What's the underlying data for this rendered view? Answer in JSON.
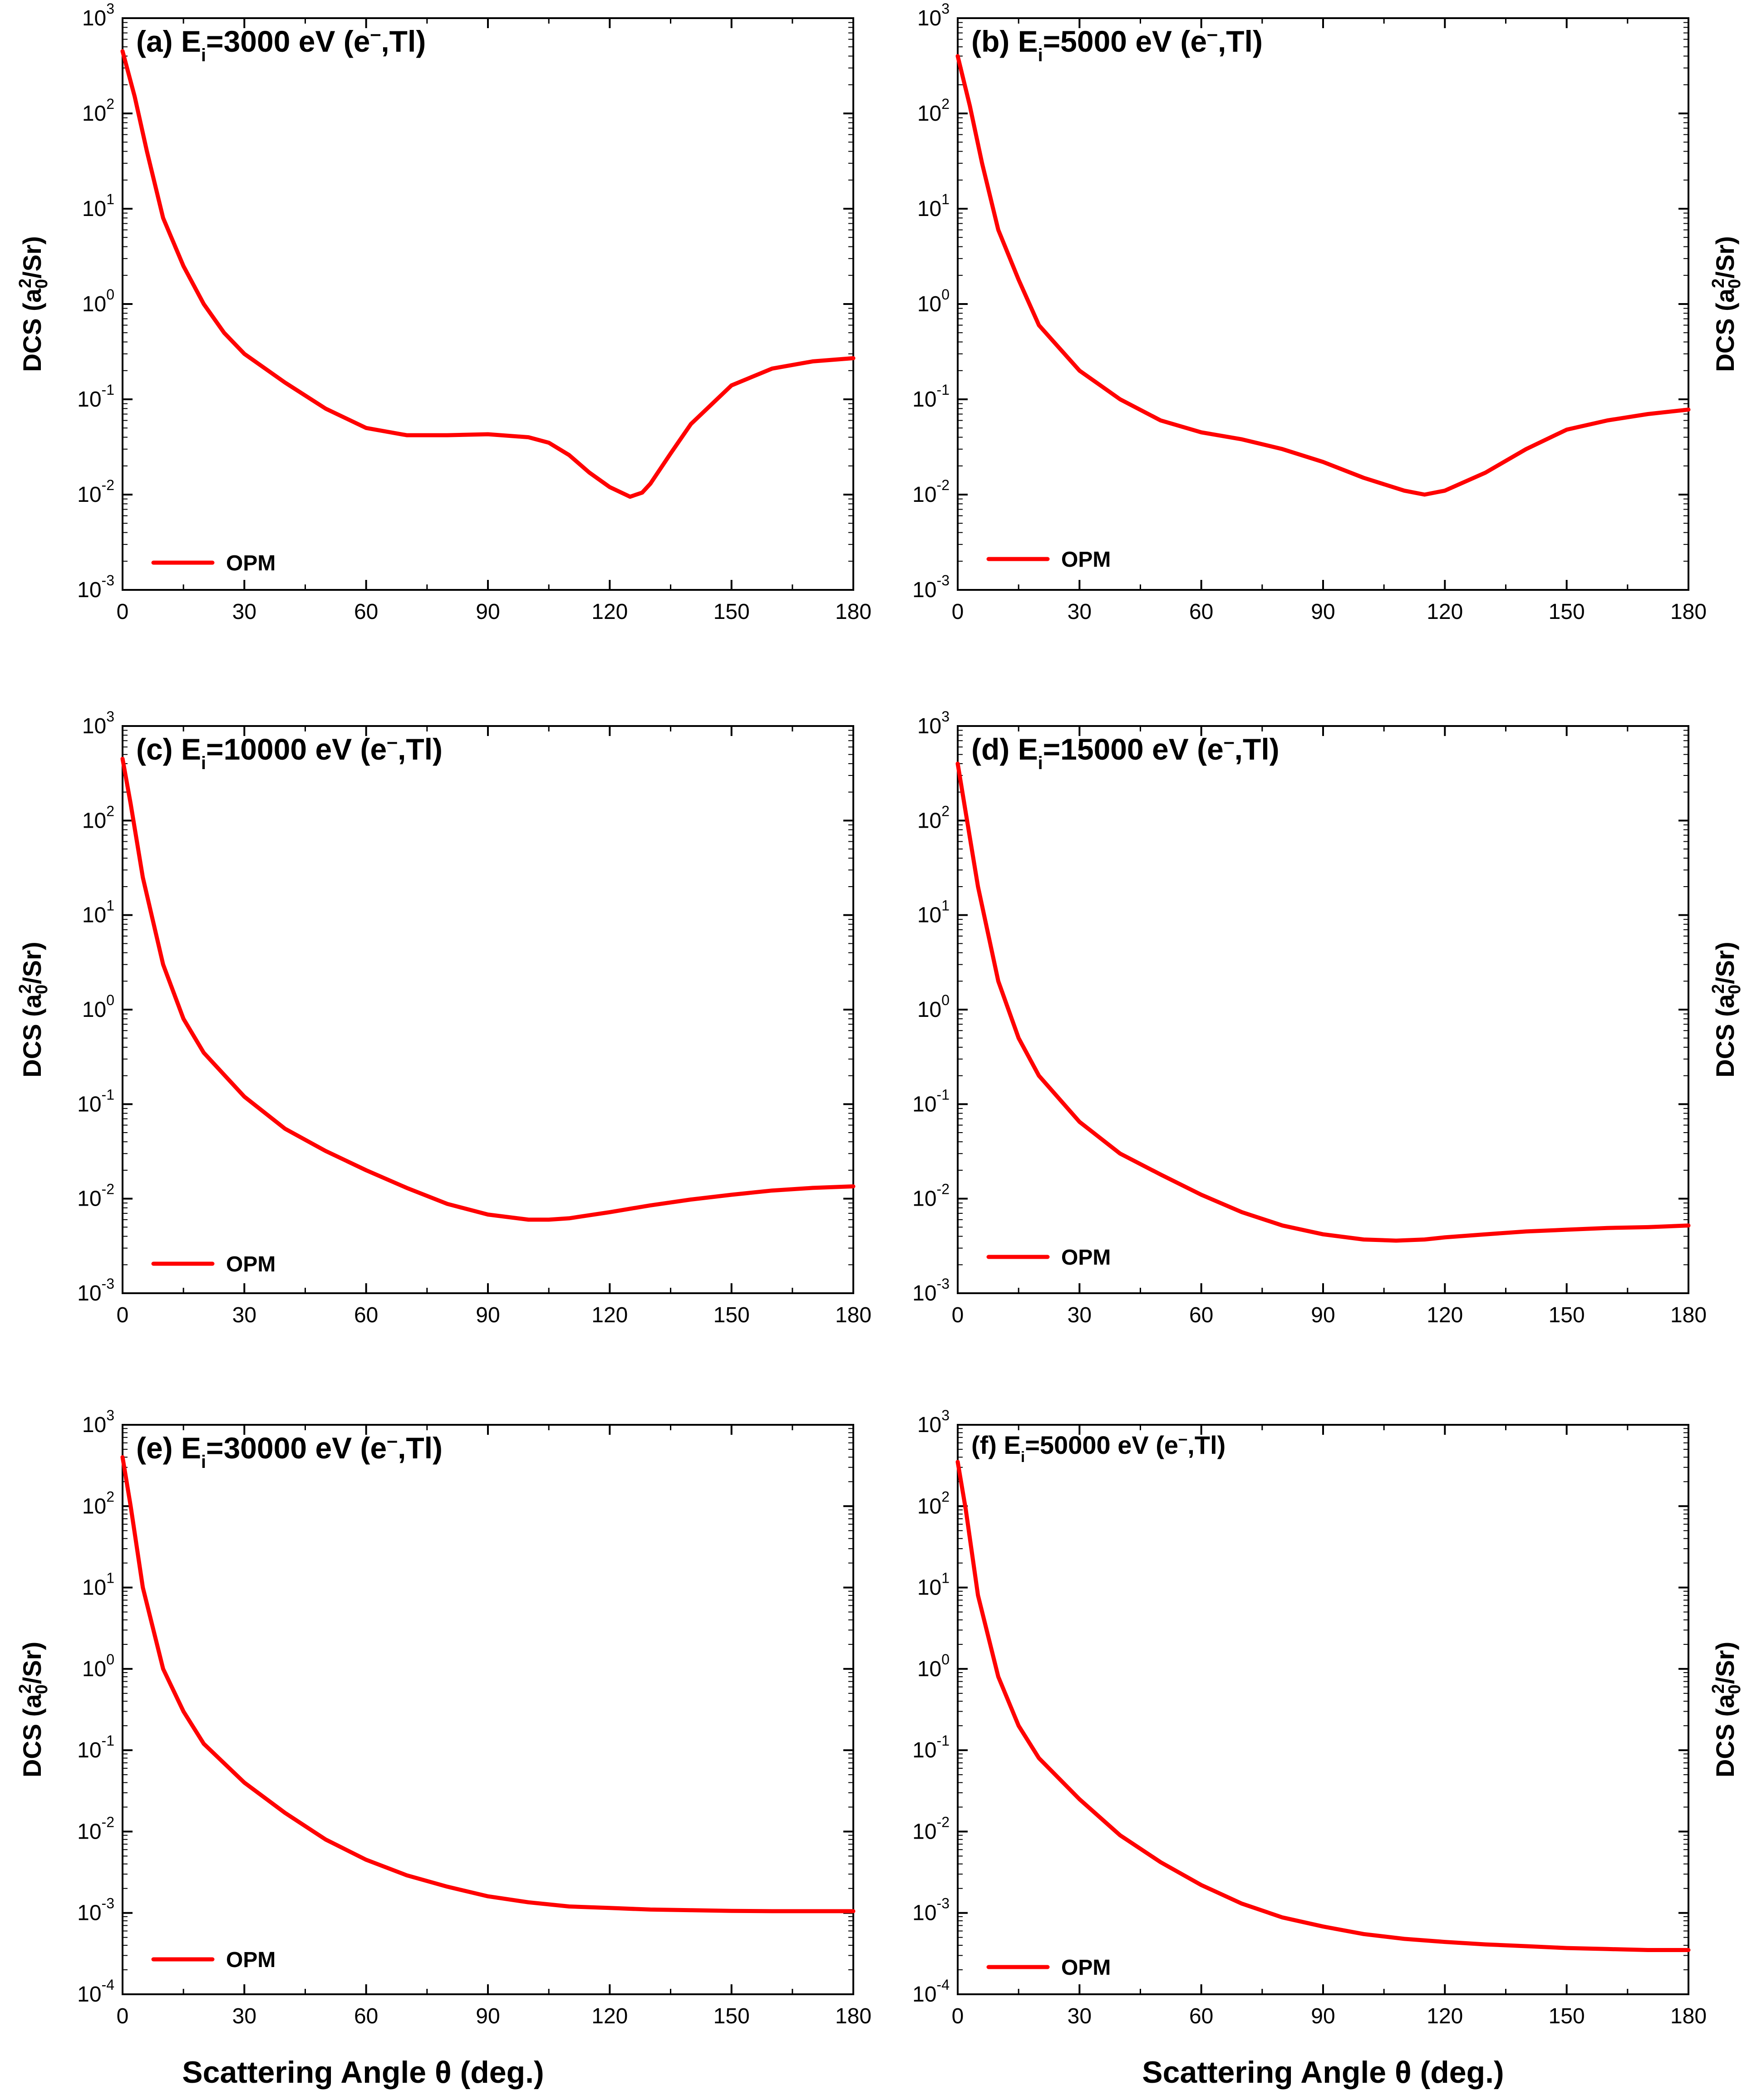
{
  "figure": {
    "xlabel_left": "Scattering Angle θ (deg.)",
    "xlabel_right": "Scattering Angle θ (deg.)"
  },
  "colors": {
    "curve": "#ff0000",
    "axis": "#000000"
  },
  "chart_data": [
    {
      "type": "line",
      "id": "a",
      "title_prefix": "(a) E",
      "title_sub": "i",
      "title_value": "=3000 eV (e",
      "title_sup": "–",
      "title_end": ",Tl)",
      "ylabel": "DCS (a0²/Sr)",
      "ylabel_side": "left",
      "xlim": [
        0,
        180
      ],
      "ylim_log10": [
        -3,
        3
      ],
      "x_ticks": [
        "0",
        "30",
        "60",
        "90",
        "120",
        "150",
        "180"
      ],
      "y_tick_exponents": [
        "3",
        "2",
        "1",
        "0",
        "-1",
        "-2",
        "-3"
      ],
      "legend": "OPM",
      "series": [
        {
          "name": "OPM",
          "x": [
            0,
            3,
            6,
            10,
            15,
            20,
            25,
            30,
            40,
            50,
            60,
            70,
            80,
            90,
            100,
            105,
            110,
            115,
            120,
            125,
            128,
            130,
            135,
            140,
            150,
            160,
            170,
            180
          ],
          "y": [
            450,
            150,
            40,
            8,
            2.5,
            1,
            0.5,
            0.3,
            0.15,
            0.08,
            0.05,
            0.042,
            0.042,
            0.043,
            0.04,
            0.035,
            0.026,
            0.017,
            0.012,
            0.0095,
            0.0105,
            0.013,
            0.027,
            0.055,
            0.14,
            0.21,
            0.25,
            0.27
          ]
        }
      ]
    },
    {
      "type": "line",
      "id": "b",
      "title_prefix": "(b) E",
      "title_sub": "i",
      "title_value": "=5000 eV (e",
      "title_sup": "–",
      "title_end": ",Tl)",
      "ylabel": "DCS (a0²/Sr)",
      "ylabel_side": "right",
      "xlim": [
        0,
        180
      ],
      "ylim_log10": [
        -3,
        3
      ],
      "x_ticks": [
        "0",
        "30",
        "60",
        "90",
        "120",
        "150",
        "180"
      ],
      "y_tick_exponents": [
        "3",
        "2",
        "1",
        "0",
        "-1",
        "-2",
        "-3"
      ],
      "legend": "OPM",
      "series": [
        {
          "name": "OPM",
          "x": [
            0,
            3,
            6,
            10,
            15,
            20,
            30,
            40,
            50,
            60,
            70,
            80,
            90,
            100,
            110,
            115,
            120,
            130,
            140,
            150,
            160,
            170,
            180
          ],
          "y": [
            400,
            120,
            30,
            6,
            1.8,
            0.6,
            0.2,
            0.1,
            0.06,
            0.045,
            0.038,
            0.03,
            0.022,
            0.015,
            0.011,
            0.01,
            0.011,
            0.017,
            0.03,
            0.048,
            0.06,
            0.07,
            0.078
          ]
        }
      ]
    },
    {
      "type": "line",
      "id": "c",
      "title_prefix": "(c) E",
      "title_sub": "i",
      "title_value": "=10000 eV (e",
      "title_sup": "–",
      "title_end": ",Tl)",
      "ylabel": "DCS (a0²/Sr)",
      "ylabel_side": "left",
      "xlim": [
        0,
        180
      ],
      "ylim_log10": [
        -3,
        3
      ],
      "x_ticks": [
        "0",
        "30",
        "60",
        "90",
        "120",
        "150",
        "180"
      ],
      "y_tick_exponents": [
        "3",
        "2",
        "1",
        "0",
        "-1",
        "-2",
        "-3"
      ],
      "legend": "OPM",
      "series": [
        {
          "name": "OPM",
          "x": [
            0,
            2,
            5,
            10,
            15,
            20,
            30,
            40,
            50,
            60,
            70,
            80,
            90,
            100,
            105,
            110,
            120,
            130,
            140,
            150,
            160,
            170,
            180
          ],
          "y": [
            450,
            150,
            25,
            3,
            0.8,
            0.35,
            0.12,
            0.055,
            0.032,
            0.02,
            0.013,
            0.0088,
            0.0068,
            0.006,
            0.006,
            0.0062,
            0.0072,
            0.0085,
            0.0098,
            0.011,
            0.0122,
            0.013,
            0.0135
          ]
        }
      ]
    },
    {
      "type": "line",
      "id": "d",
      "title_prefix": "(d) E",
      "title_sub": "i",
      "title_value": "=15000 eV (e",
      "title_sup": "–",
      "title_end": ",Tl)",
      "ylabel": "DCS (a0²/Sr)",
      "ylabel_side": "right",
      "xlim": [
        0,
        180
      ],
      "ylim_log10": [
        -3,
        3
      ],
      "x_ticks": [
        "0",
        "30",
        "60",
        "90",
        "120",
        "150",
        "180"
      ],
      "y_tick_exponents": [
        "3",
        "2",
        "1",
        "0",
        "-1",
        "-2",
        "-3"
      ],
      "legend": "OPM",
      "series": [
        {
          "name": "OPM",
          "x": [
            0,
            2,
            5,
            10,
            15,
            20,
            30,
            40,
            50,
            60,
            70,
            80,
            90,
            100,
            108,
            115,
            120,
            130,
            140,
            150,
            160,
            170,
            180
          ],
          "y": [
            400,
            120,
            20,
            2,
            0.5,
            0.2,
            0.065,
            0.03,
            0.018,
            0.011,
            0.0072,
            0.0052,
            0.0042,
            0.0037,
            0.0036,
            0.0037,
            0.0039,
            0.0042,
            0.0045,
            0.0047,
            0.0049,
            0.005,
            0.0052
          ]
        }
      ]
    },
    {
      "type": "line",
      "id": "e",
      "title_prefix": "(e) E",
      "title_sub": "i",
      "title_value": "=30000 eV (e",
      "title_sup": "–",
      "title_end": ",Tl)",
      "ylabel": "DCS (a0²/Sr)",
      "ylabel_side": "left",
      "xlim": [
        0,
        180
      ],
      "ylim_log10": [
        -4,
        3
      ],
      "x_ticks": [
        "0",
        "30",
        "60",
        "90",
        "120",
        "150",
        "180"
      ],
      "y_tick_exponents": [
        "3",
        "2",
        "1",
        "0",
        "-1",
        "-2",
        "-3",
        "-4"
      ],
      "legend": "OPM",
      "series": [
        {
          "name": "OPM",
          "x": [
            0,
            2,
            5,
            10,
            15,
            20,
            30,
            40,
            50,
            60,
            70,
            80,
            90,
            100,
            110,
            120,
            130,
            140,
            150,
            160,
            170,
            180
          ],
          "y": [
            400,
            100,
            10,
            1,
            0.3,
            0.12,
            0.04,
            0.017,
            0.008,
            0.0045,
            0.0029,
            0.0021,
            0.0016,
            0.00135,
            0.0012,
            0.00115,
            0.0011,
            0.00108,
            0.00106,
            0.00105,
            0.00105,
            0.00105
          ]
        }
      ]
    },
    {
      "type": "line",
      "id": "f",
      "title_prefix": "(f) E",
      "title_sub": "i",
      "title_value": "=50000 eV (e",
      "title_sup": "–",
      "title_end": ",Tl)",
      "ylabel": "DCS (a0²/Sr)",
      "ylabel_side": "right",
      "xlim": [
        0,
        180
      ],
      "ylim_log10": [
        -4,
        3
      ],
      "x_ticks": [
        "0",
        "30",
        "60",
        "90",
        "120",
        "150",
        "180"
      ],
      "y_tick_exponents": [
        "3",
        "2",
        "1",
        "0",
        "-1",
        "-2",
        "-3",
        "-4"
      ],
      "legend": "OPM",
      "series": [
        {
          "name": "OPM",
          "x": [
            0,
            2,
            5,
            10,
            15,
            20,
            30,
            40,
            50,
            60,
            70,
            80,
            90,
            100,
            110,
            120,
            130,
            140,
            150,
            160,
            170,
            180
          ],
          "y": [
            350,
            90,
            8,
            0.8,
            0.2,
            0.08,
            0.025,
            0.009,
            0.0042,
            0.0022,
            0.0013,
            0.00088,
            0.00068,
            0.00055,
            0.00048,
            0.00044,
            0.00041,
            0.00039,
            0.00037,
            0.00036,
            0.00035,
            0.00035
          ]
        }
      ]
    }
  ]
}
